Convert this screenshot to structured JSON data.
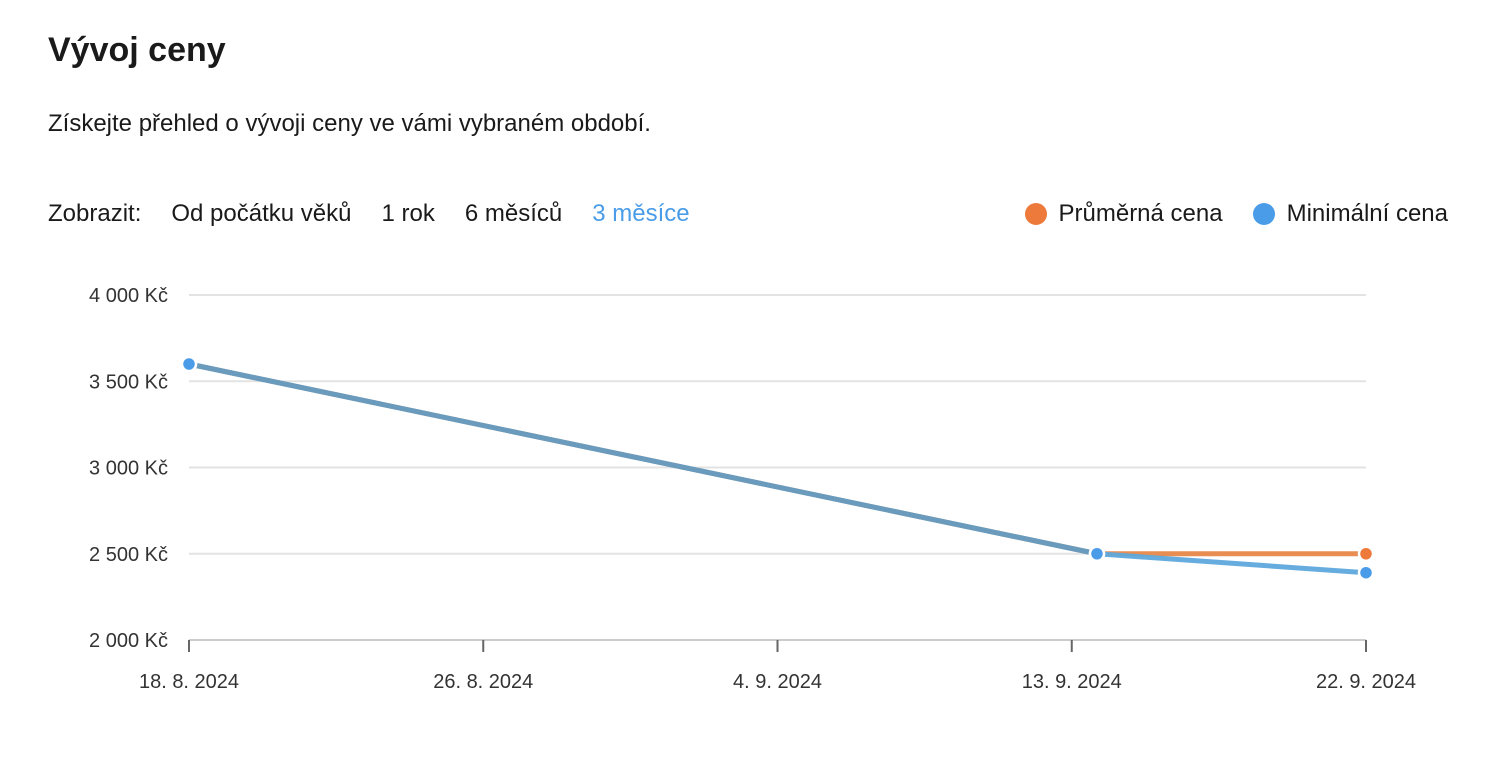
{
  "header": {
    "title": "Vývoj ceny",
    "subtitle": "Získejte přehled o vývoji ceny ve vámi vybraném období."
  },
  "range_selector": {
    "label": "Zobrazit:",
    "options": [
      {
        "label": "Od počátku věků",
        "active": false
      },
      {
        "label": "1 rok",
        "active": false
      },
      {
        "label": "6 měsíců",
        "active": false
      },
      {
        "label": "3 měsíce",
        "active": true
      }
    ]
  },
  "legend": {
    "items": [
      {
        "label": "Průměrná cena",
        "color": "#ed7a3a"
      },
      {
        "label": "Minimální cena",
        "color": "#4a9ce8"
      }
    ]
  },
  "chart_data": {
    "type": "line",
    "title": "",
    "xlabel": "",
    "ylabel": "",
    "x_ticks": [
      "18. 8. 2024",
      "26. 8. 2024",
      "4. 9. 2024",
      "13. 9. 2024",
      "22. 9. 2024"
    ],
    "y_ticks": [
      "4 000 Kč",
      "3 500 Kč",
      "3 000 Kč",
      "2 500 Kč",
      "2 000 Kč"
    ],
    "y_tick_values": [
      4000,
      3500,
      3000,
      2500,
      2000
    ],
    "xlim": [
      "2024-08-18",
      "2024-09-22"
    ],
    "ylim": [
      2000,
      4000
    ],
    "grid": true,
    "legend_position": "top-right",
    "series": [
      {
        "name": "Průměrná cena",
        "color": "#ed7a3a",
        "points": [
          {
            "x": "2024-08-18",
            "y": 3600
          },
          {
            "x": "2024-09-14",
            "y": 2500
          },
          {
            "x": "2024-09-22",
            "y": 2500
          }
        ]
      },
      {
        "name": "Minimální cena",
        "color": "#5ea8dc",
        "points": [
          {
            "x": "2024-08-18",
            "y": 3600
          },
          {
            "x": "2024-09-14",
            "y": 2500
          },
          {
            "x": "2024-09-22",
            "y": 2390
          }
        ]
      }
    ]
  }
}
